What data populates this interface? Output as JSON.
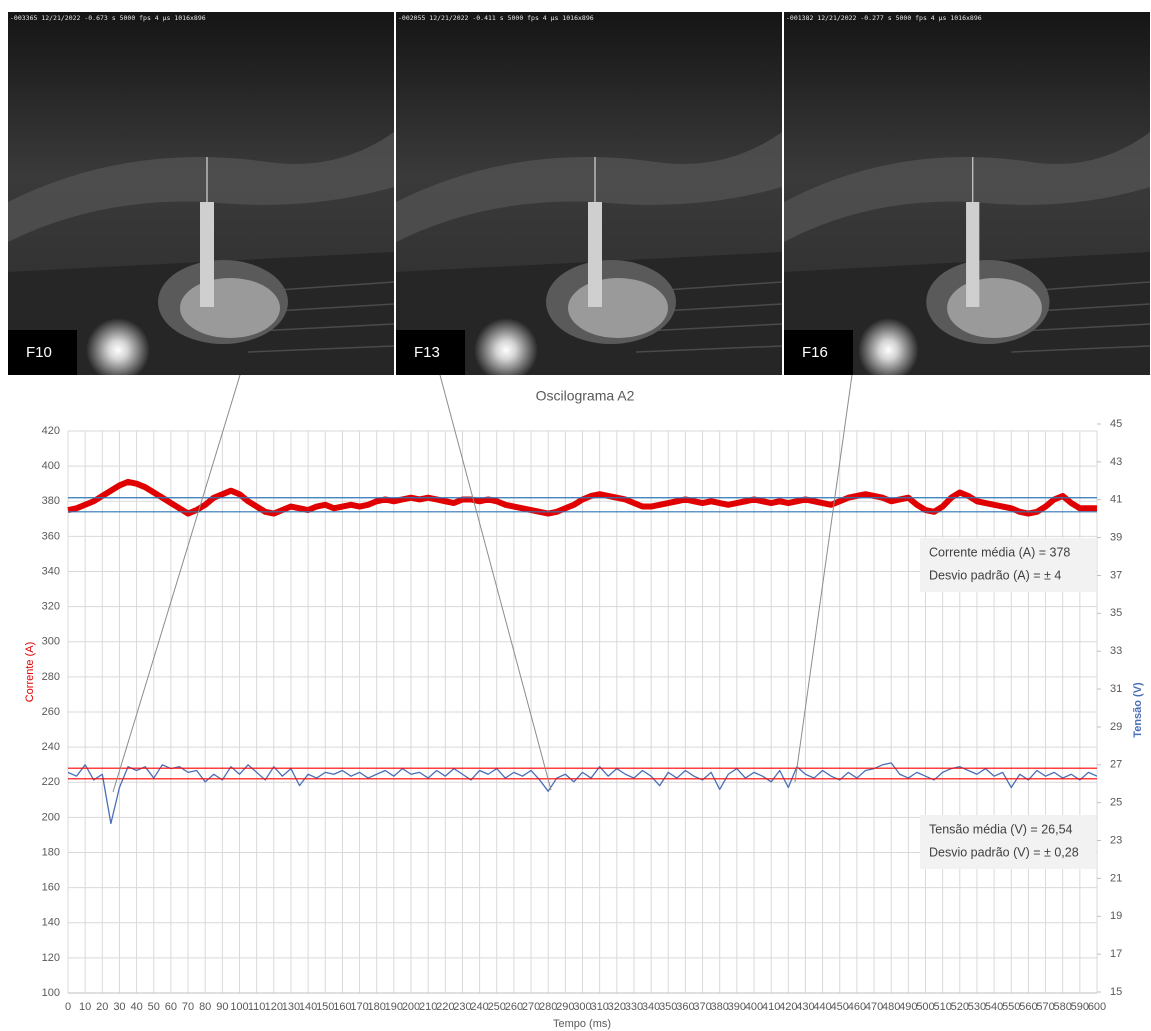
{
  "photos": [
    {
      "header": "-003365 12/21/2022 -0.673 s 5000 fps 4 µs 1016x896",
      "label": "F10"
    },
    {
      "header": "-002055 12/21/2022 -0.411 s 5000 fps 4 µs 1016x896",
      "label": "F13"
    },
    {
      "header": "-001382 12/21/2022 -0.277 s 5000 fps 4 µs 1016x896",
      "label": "F16"
    }
  ],
  "chart_data": {
    "type": "line",
    "title": "Oscilograma A2",
    "xlabel": "Tempo (ms)",
    "ylabel": "Corrente (A)",
    "y2label": "Tensão (V)",
    "x": [
      0,
      5,
      10,
      15,
      20,
      25,
      30,
      35,
      40,
      45,
      50,
      55,
      60,
      65,
      70,
      75,
      80,
      85,
      90,
      95,
      100,
      105,
      110,
      115,
      120,
      125,
      130,
      135,
      140,
      145,
      150,
      155,
      160,
      165,
      170,
      175,
      180,
      185,
      190,
      195,
      200,
      205,
      210,
      215,
      220,
      225,
      230,
      235,
      240,
      245,
      250,
      255,
      260,
      265,
      270,
      275,
      280,
      285,
      290,
      295,
      300,
      305,
      310,
      315,
      320,
      325,
      330,
      335,
      340,
      345,
      350,
      355,
      360,
      365,
      370,
      375,
      380,
      385,
      390,
      395,
      400,
      405,
      410,
      415,
      420,
      425,
      430,
      435,
      440,
      445,
      450,
      455,
      460,
      465,
      470,
      475,
      480,
      485,
      490,
      495,
      500,
      505,
      510,
      515,
      520,
      525,
      530,
      535,
      540,
      545,
      550,
      555,
      560,
      565,
      570,
      575,
      580,
      585,
      590,
      595,
      600
    ],
    "series": [
      {
        "color": "#e00000",
        "values": [
          375,
          376,
          378,
          380,
          383,
          386,
          389,
          391,
          390,
          388,
          385,
          382,
          379,
          376,
          373,
          375,
          378,
          382,
          384,
          386,
          384,
          380,
          377,
          374,
          373,
          375,
          377,
          376,
          375,
          377,
          378,
          376,
          377,
          378,
          377,
          378,
          380,
          381,
          380,
          381,
          382,
          381,
          382,
          381,
          380,
          379,
          381,
          381,
          380,
          381,
          380,
          378,
          377,
          376,
          375,
          374,
          373,
          374,
          376,
          378,
          381,
          383,
          384,
          383,
          382,
          381,
          379,
          377,
          377,
          378,
          379,
          380,
          381,
          380,
          379,
          380,
          379,
          378,
          379,
          380,
          381,
          380,
          379,
          380,
          379,
          380,
          381,
          380,
          379,
          378,
          380,
          382,
          383,
          384,
          383,
          382,
          380,
          381,
          382,
          378,
          375,
          374,
          377,
          382,
          385,
          383,
          380,
          379,
          378,
          377,
          376,
          374,
          373,
          374,
          377,
          381,
          383,
          379,
          376,
          376,
          376
        ]
      },
      {
        "color": "#4a6fb5",
        "axis": "y2",
        "values": [
          26.6,
          26.4,
          27.0,
          26.2,
          26.5,
          23.9,
          25.8,
          26.9,
          26.7,
          26.9,
          26.3,
          27.0,
          26.8,
          26.9,
          26.6,
          26.7,
          26.1,
          26.5,
          26.2,
          26.9,
          26.5,
          27.0,
          26.6,
          26.2,
          26.9,
          26.4,
          26.8,
          25.9,
          26.5,
          26.3,
          26.6,
          26.5,
          26.7,
          26.4,
          26.6,
          26.3,
          26.5,
          26.7,
          26.4,
          26.8,
          26.5,
          26.6,
          26.3,
          26.7,
          26.4,
          26.8,
          26.5,
          26.2,
          26.7,
          26.5,
          26.8,
          26.3,
          26.6,
          26.4,
          26.7,
          26.2,
          25.6,
          26.3,
          26.5,
          26.1,
          26.6,
          26.3,
          26.9,
          26.4,
          26.8,
          26.5,
          26.3,
          26.7,
          26.4,
          25.9,
          26.6,
          26.3,
          26.7,
          26.4,
          26.2,
          26.6,
          25.7,
          26.5,
          26.8,
          26.3,
          26.6,
          26.4,
          26.1,
          26.7,
          25.8,
          26.9,
          26.5,
          26.3,
          26.7,
          26.4,
          26.2,
          26.6,
          26.3,
          26.7,
          26.8,
          27.0,
          27.1,
          26.5,
          26.3,
          26.6,
          26.4,
          26.2,
          26.6,
          26.8,
          26.9,
          26.7,
          26.5,
          26.8,
          26.4,
          26.6,
          25.8,
          26.5,
          26.2,
          26.7,
          26.4,
          26.6,
          26.3,
          26.5,
          26.2,
          26.6,
          26.4
        ]
      }
    ],
    "reference_lines": [
      {
        "axis": "y",
        "value": 374,
        "color": "#2e75b6"
      },
      {
        "axis": "y",
        "value": 382,
        "color": "#2e75b6"
      },
      {
        "axis": "y2",
        "value": 26.26,
        "color": "#ff0000"
      },
      {
        "axis": "y2",
        "value": 26.82,
        "color": "#ff0000"
      }
    ],
    "annotations": [
      [
        "Corrente média (A) = 378",
        "Desvio padrão (A) = ± 4"
      ],
      [
        "Tensão média (V) = 26,54",
        "Desvio padrão (V) = ± 0,28"
      ]
    ],
    "xlim": [
      0,
      600
    ],
    "ylim": [
      100,
      420
    ],
    "y2lim": [
      15,
      45
    ],
    "xticks": [
      0,
      10,
      20,
      30,
      40,
      50,
      60,
      70,
      80,
      90,
      100,
      110,
      120,
      130,
      140,
      150,
      160,
      170,
      180,
      190,
      200,
      210,
      220,
      230,
      240,
      250,
      260,
      270,
      280,
      290,
      300,
      310,
      320,
      330,
      340,
      350,
      360,
      370,
      380,
      390,
      400,
      410,
      420,
      430,
      440,
      450,
      460,
      470,
      480,
      490,
      500,
      510,
      520,
      530,
      540,
      550,
      560,
      570,
      580,
      590,
      600
    ],
    "yticks": [
      100,
      120,
      140,
      160,
      180,
      200,
      220,
      240,
      260,
      280,
      300,
      320,
      340,
      360,
      380,
      400,
      420
    ],
    "y2ticks": [
      15,
      17,
      19,
      21,
      23,
      25,
      27,
      29,
      31,
      33,
      35,
      37,
      39,
      41,
      43,
      45
    ],
    "grid": true
  }
}
